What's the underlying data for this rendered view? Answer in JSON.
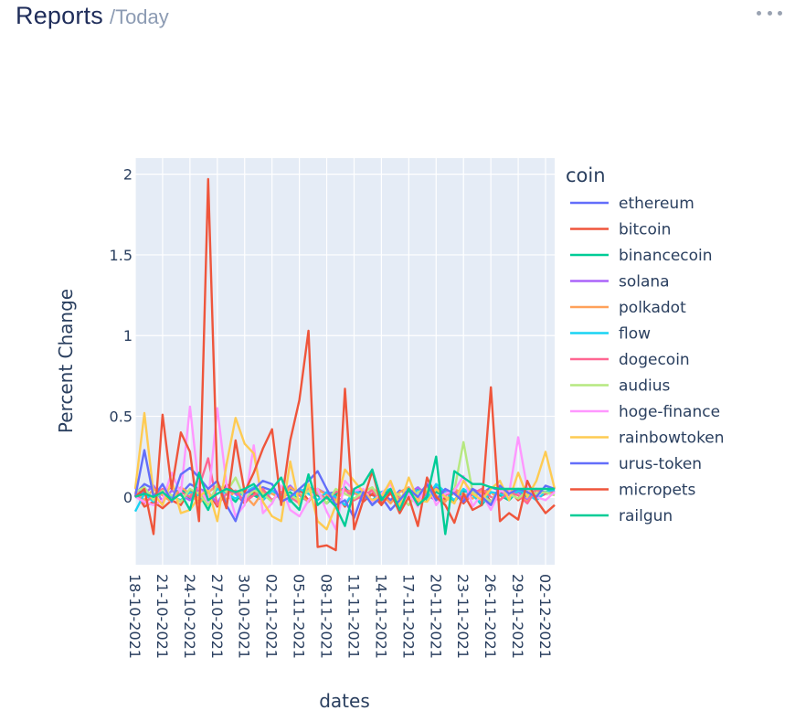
{
  "header": {
    "title": "Reports",
    "subtitle": "/Today"
  },
  "menu_icon": "more-horizontal-icon",
  "chart_data": {
    "type": "line",
    "xlabel": "dates",
    "ylabel": "Percent Change",
    "legend_title": "coin",
    "legend_position": "right",
    "grid": true,
    "ylim": [
      -0.42,
      2.1
    ],
    "yticks": [
      0,
      0.5,
      1,
      1.5,
      2
    ],
    "ytick_labels": [
      "0",
      "0.5",
      "1",
      "1.5",
      "2"
    ],
    "x_dates": [
      "18-10-2021",
      "19-10-2021",
      "20-10-2021",
      "21-10-2021",
      "22-10-2021",
      "23-10-2021",
      "24-10-2021",
      "25-10-2021",
      "26-10-2021",
      "27-10-2021",
      "28-10-2021",
      "29-10-2021",
      "30-10-2021",
      "31-10-2021",
      "01-11-2021",
      "02-11-2021",
      "03-11-2021",
      "04-11-2021",
      "05-11-2021",
      "06-11-2021",
      "07-11-2021",
      "08-11-2021",
      "09-11-2021",
      "10-11-2021",
      "11-11-2021",
      "12-11-2021",
      "13-11-2021",
      "14-11-2021",
      "15-11-2021",
      "16-11-2021",
      "17-11-2021",
      "18-11-2021",
      "19-11-2021",
      "20-11-2021",
      "21-11-2021",
      "22-11-2021",
      "23-11-2021",
      "24-11-2021",
      "25-11-2021",
      "26-11-2021",
      "27-11-2021",
      "28-11-2021",
      "29-11-2021",
      "30-11-2021",
      "01-12-2021",
      "02-12-2021",
      "03-12-2021"
    ],
    "x_tick_labels": [
      "18-10-2021",
      "21-10-2021",
      "24-10-2021",
      "27-10-2021",
      "30-10-2021",
      "02-11-2021",
      "05-11-2021",
      "08-11-2021",
      "11-11-2021",
      "14-11-2021",
      "17-11-2021",
      "20-11-2021",
      "23-11-2021",
      "26-11-2021",
      "29-11-2021",
      "02-12-2021"
    ],
    "series": [
      {
        "name": "ethereum",
        "color": "#636efa",
        "values": [
          0.02,
          0.08,
          0.05,
          0.03,
          0.06,
          0.02,
          0.08,
          0.05,
          0.03,
          0.07,
          0.04,
          0.02,
          0.05,
          0.03,
          0.06,
          0.04,
          0.02,
          0.05,
          0.03,
          0.06,
          0.04,
          0.02,
          0.03,
          0.05,
          0.02,
          0.04,
          0.01,
          0.03,
          -0.02,
          0.04,
          0.02,
          0.05,
          0.03,
          0.06,
          0.02,
          0.04,
          0.03,
          0.05,
          0.02,
          0.06,
          0.04,
          0.03,
          0.05,
          0.02,
          0.04,
          0.03,
          0.05
        ]
      },
      {
        "name": "bitcoin",
        "color": "#EF553B",
        "values": [
          0.03,
          -0.06,
          -0.03,
          -0.07,
          -0.02,
          -0.05,
          0.05,
          -0.02,
          0.03,
          -0.06,
          0.08,
          0.02,
          -0.04,
          0.03,
          -0.02,
          0.04,
          0.01,
          -0.03,
          0.05,
          -0.02,
          0.03,
          -0.04,
          0.02,
          -0.06,
          0.04,
          -0.03,
          0.02,
          -0.05,
          0.03,
          -0.02,
          0.04,
          -0.03,
          0.02,
          0.05,
          -0.02,
          0.03,
          -0.04,
          0.02,
          0.05,
          -0.03,
          0.02,
          0.04,
          -0.02,
          0.03,
          -0.01,
          0.02,
          0.03
        ]
      },
      {
        "name": "binancecoin",
        "color": "#00cc96",
        "values": [
          0.0,
          0.04,
          -0.02,
          0.03,
          0.0,
          0.05,
          -0.01,
          0.02,
          -0.08,
          0.06,
          0.02,
          -0.03,
          0.05,
          0.01,
          -0.02,
          0.04,
          0.0,
          0.03,
          -0.02,
          0.05,
          0.01,
          -0.04,
          0.02,
          0.06,
          -0.02,
          0.03,
          -0.05,
          0.02,
          0.04,
          -0.03,
          0.01,
          0.05,
          -0.02,
          0.03,
          0.0,
          -0.03,
          0.04,
          0.02,
          -0.05,
          0.03,
          0.01,
          -0.02,
          0.04,
          0.0,
          0.02,
          0.03,
          0.05
        ]
      },
      {
        "name": "solana",
        "color": "#ab63fa",
        "values": [
          0.05,
          0.02,
          0.07,
          -0.03,
          0.04,
          0.01,
          -0.02,
          0.05,
          0.03,
          -0.04,
          0.06,
          0.02,
          -0.03,
          0.05,
          0.04,
          -0.02,
          0.03,
          0.07,
          0.01,
          -0.03,
          0.05,
          0.02,
          -0.01,
          0.04,
          0.03,
          -0.02,
          0.05,
          0.01,
          0.03,
          -0.04,
          0.02,
          0.06,
          0.01,
          -0.02,
          0.04,
          0.03,
          -0.01,
          0.05,
          0.02,
          -0.03,
          0.04,
          0.01,
          0.03,
          -0.02,
          0.05,
          0.02,
          0.04
        ]
      },
      {
        "name": "polkadot",
        "color": "#FFA15A",
        "values": [
          0.04,
          -0.02,
          0.05,
          0.01,
          -0.03,
          0.06,
          0.02,
          -0.04,
          0.03,
          0.07,
          -0.02,
          0.04,
          0.01,
          -0.05,
          0.03,
          0.02,
          -0.01,
          0.06,
          0.02,
          -0.03,
          0.05,
          0.01,
          -0.02,
          0.04,
          0.03,
          -0.01,
          0.05,
          0.02,
          -0.04,
          0.03,
          0.06,
          -0.02,
          0.04,
          0.01,
          -0.03,
          0.05,
          0.02,
          -0.01,
          0.04,
          0.03,
          -0.02,
          0.05,
          0.01,
          -0.03,
          0.04,
          0.02,
          0.03
        ]
      },
      {
        "name": "flow",
        "color": "#19d3f3",
        "values": [
          -0.09,
          0.02,
          -0.03,
          0.04,
          0.0,
          -0.02,
          0.03,
          0.01,
          -0.04,
          0.05,
          0.02,
          -0.01,
          0.03,
          0.06,
          -0.02,
          0.04,
          0.01,
          -0.03,
          0.05,
          0.02,
          -0.02,
          0.03,
          0.0,
          -0.05,
          0.04,
          0.01,
          -0.02,
          0.03,
          0.05,
          -0.03,
          0.02,
          0.04,
          -0.01,
          0.08,
          0.03,
          -0.02,
          0.05,
          0.01,
          -0.04,
          0.03,
          0.02,
          -0.01,
          0.04,
          0.02,
          -0.02,
          0.03,
          0.04
        ]
      },
      {
        "name": "dogecoin",
        "color": "#FF6692",
        "values": [
          0.02,
          -0.04,
          0.01,
          0.05,
          -0.02,
          0.03,
          0.0,
          0.06,
          0.24,
          -0.05,
          0.02,
          0.04,
          -0.03,
          0.01,
          0.05,
          -0.02,
          0.03,
          0.0,
          -0.04,
          0.06,
          0.02,
          -0.01,
          0.03,
          0.05,
          -0.02,
          0.01,
          0.04,
          -0.03,
          0.02,
          0.0,
          -0.05,
          0.03,
          0.06,
          -0.02,
          0.01,
          0.04,
          -0.03,
          0.02,
          0.05,
          0.0,
          -0.02,
          0.03,
          0.01,
          -0.04,
          0.05,
          0.02,
          0.03
        ]
      },
      {
        "name": "audius",
        "color": "#B6E880",
        "values": [
          0.03,
          0.06,
          -0.02,
          0.04,
          0.01,
          -0.03,
          0.05,
          0.02,
          -0.05,
          0.08,
          0.03,
          0.12,
          -0.01,
          0.04,
          0.02,
          -0.03,
          0.06,
          0.01,
          -0.02,
          0.04,
          0.03,
          -0.04,
          0.05,
          0.02,
          -0.01,
          0.03,
          0.06,
          -0.02,
          0.04,
          0.01,
          -0.05,
          0.03,
          0.05,
          -0.02,
          0.02,
          0.04,
          0.34,
          0.03,
          0.01,
          -0.03,
          0.05,
          0.02,
          -0.01,
          0.04,
          0.02,
          0.03,
          0.01
        ]
      },
      {
        "name": "hoge-finance",
        "color": "#FF97FF",
        "values": [
          0.0,
          -0.03,
          -0.05,
          -0.02,
          0.15,
          0.02,
          0.56,
          0.05,
          -0.03,
          0.55,
          0.08,
          -0.12,
          -0.05,
          0.32,
          -0.1,
          -0.04,
          0.07,
          -0.08,
          -0.12,
          -0.02,
          0.05,
          -0.09,
          -0.2,
          0.1,
          0.04,
          0.05,
          -0.03,
          0.02,
          0.08,
          -0.05,
          0.02,
          -0.06,
          0.1,
          -0.05,
          0.02,
          0.04,
          0.13,
          -0.06,
          0.02,
          -0.08,
          0.04,
          0.02,
          0.37,
          0.05,
          0.0,
          -0.02,
          0.03
        ]
      },
      {
        "name": "rainbowtoken",
        "color": "#FECB52",
        "values": [
          0.05,
          0.52,
          0.02,
          -0.05,
          0.1,
          -0.1,
          -0.08,
          0.0,
          0.05,
          -0.15,
          0.2,
          0.49,
          0.33,
          0.27,
          -0.03,
          -0.12,
          -0.15,
          0.22,
          -0.05,
          0.08,
          -0.15,
          -0.2,
          -0.05,
          0.17,
          0.1,
          0.03,
          -0.02,
          0.0,
          0.1,
          -0.05,
          0.12,
          -0.02,
          -0.03,
          0.05,
          0.0,
          -0.04,
          0.1,
          0.02,
          -0.02,
          0.05,
          0.1,
          -0.02,
          0.15,
          0.0,
          0.1,
          0.28,
          0.05
        ]
      },
      {
        "name": "urus-token",
        "color": "#636efa",
        "values": [
          0.0,
          0.29,
          0.0,
          0.08,
          -0.03,
          0.14,
          0.18,
          0.12,
          0.05,
          0.1,
          -0.05,
          -0.15,
          0.02,
          0.05,
          0.1,
          0.08,
          -0.03,
          0.0,
          0.05,
          0.1,
          0.16,
          0.05,
          -0.05,
          -0.02,
          -0.13,
          0.03,
          -0.05,
          0.0,
          -0.08,
          -0.02,
          0.05,
          0.0,
          0.08,
          -0.02,
          0.05,
          0.02,
          -0.03,
          0.05,
          0.0,
          -0.05,
          0.07,
          0.02,
          0.05,
          0.03,
          0.0,
          0.07,
          0.05
        ]
      },
      {
        "name": "micropets",
        "color": "#EF553B",
        "values": [
          0.0,
          0.05,
          -0.23,
          0.51,
          0.05,
          0.4,
          0.28,
          -0.15,
          1.97,
          0.1,
          -0.07,
          0.35,
          0.03,
          0.15,
          0.3,
          0.42,
          -0.05,
          0.35,
          0.6,
          1.03,
          -0.31,
          -0.3,
          -0.33,
          0.67,
          -0.2,
          -0.02,
          0.16,
          -0.05,
          0.03,
          -0.1,
          0.0,
          -0.18,
          0.12,
          0.0,
          -0.05,
          -0.16,
          0.02,
          -0.08,
          -0.05,
          0.68,
          -0.15,
          -0.1,
          -0.14,
          0.1,
          -0.02,
          -0.1,
          -0.05
        ]
      },
      {
        "name": "railgun",
        "color": "#00cc96",
        "values": [
          0.0,
          0.02,
          0.0,
          0.03,
          -0.02,
          0.02,
          -0.08,
          0.15,
          -0.02,
          0.02,
          0.05,
          0.03,
          0.05,
          0.08,
          0.0,
          0.05,
          0.12,
          -0.02,
          -0.08,
          0.14,
          -0.05,
          0.0,
          -0.06,
          -0.18,
          0.05,
          0.08,
          0.17,
          -0.02,
          0.05,
          -0.08,
          0.05,
          -0.05,
          0.0,
          0.25,
          -0.23,
          0.16,
          0.12,
          0.08,
          0.08,
          0.06,
          0.05,
          0.05,
          0.05,
          0.05,
          0.05,
          0.05,
          0.05
        ]
      }
    ]
  }
}
